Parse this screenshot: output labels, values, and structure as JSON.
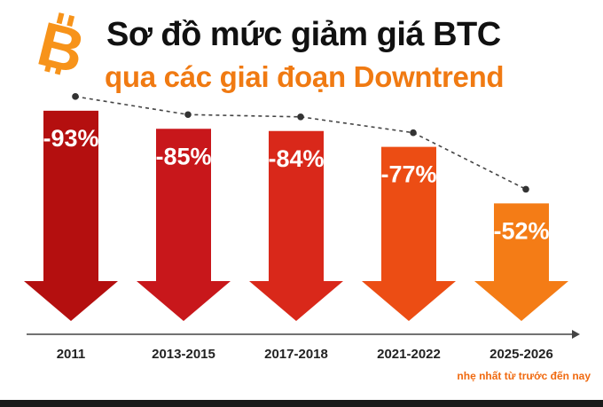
{
  "header": {
    "title": "Sơ đồ mức giảm giá BTC",
    "subtitle": "qua các giai đoạn Downtrend"
  },
  "note": "nhẹ nhất từ trước đến nay",
  "colors": {
    "accent": "#f07a12",
    "note": "#f06a10",
    "logo": "#f7931a",
    "bars": [
      "#b40f0f",
      "#c8171b",
      "#d9281a",
      "#ec4d14",
      "#f47c16"
    ]
  },
  "icons": {
    "logo": "bitcoin-logo"
  },
  "chart_data": {
    "type": "bar",
    "categories": [
      "2011",
      "2013-2015",
      "2017-2018",
      "2021-2022",
      "2025-2026"
    ],
    "values": [
      -93,
      -85,
      -84,
      -77,
      -52
    ],
    "value_labels": [
      "-93%",
      "-85%",
      "-84%",
      "-77%",
      "-52%"
    ],
    "title": "Sơ đồ mức giảm giá BTC",
    "subtitle": "qua các giai đoạn Downtrend",
    "xlabel": "",
    "ylabel": "",
    "ylim": [
      -100,
      0
    ],
    "grid": false,
    "legend": "none",
    "trend_line": "dashed"
  }
}
